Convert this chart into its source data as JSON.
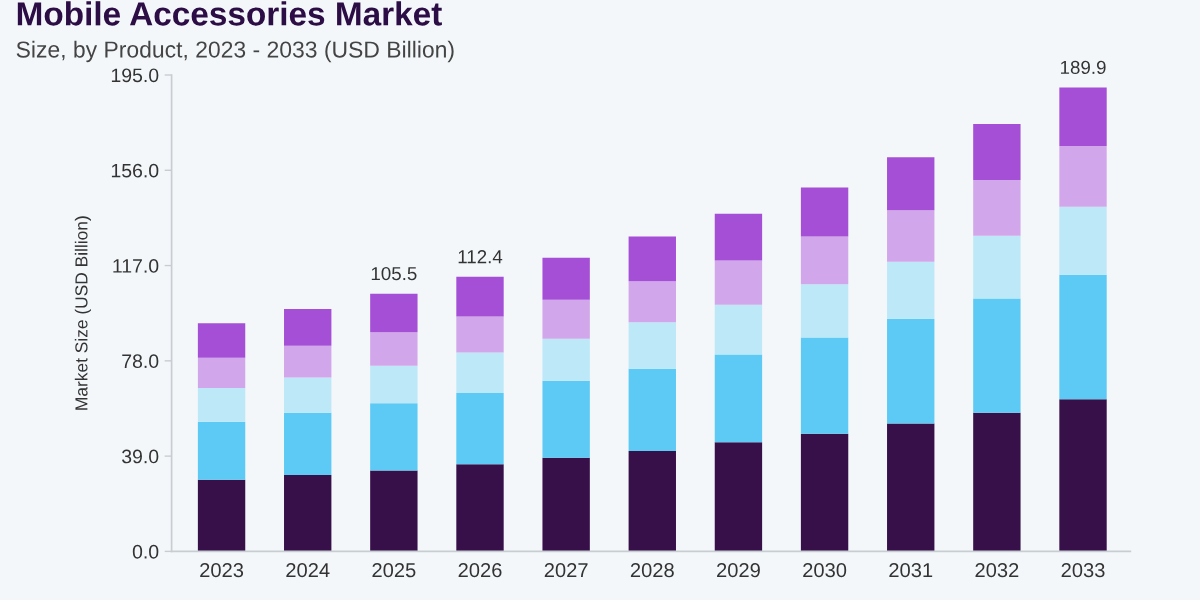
{
  "chart_data": {
    "type": "bar",
    "title": "Mobile Accessories Market",
    "subtitle": "Size, by Product, 2023 - 2033 (USD Billion)",
    "ylabel": "Market Size (USD Billion)",
    "categories": [
      "2023",
      "2024",
      "2025",
      "2026",
      "2027",
      "2028",
      "2029",
      "2030",
      "2031",
      "2032",
      "2033"
    ],
    "stacked": true,
    "series": [
      {
        "color": "#37104a",
        "values": [
          29.3,
          31.3,
          33.1,
          35.7,
          38.3,
          41.1,
          44.7,
          48.2,
          52.4,
          56.8,
          62.3
        ]
      },
      {
        "color": "#5ccaf5",
        "values": [
          23.8,
          25.5,
          27.5,
          29.1,
          31.6,
          33.7,
          35.9,
          39.4,
          42.8,
          46.7,
          50.9
        ]
      },
      {
        "color": "#bde8f8",
        "values": [
          13.8,
          14.4,
          15.4,
          16.6,
          17.1,
          19.0,
          20.4,
          21.7,
          23.4,
          25.7,
          27.9
        ]
      },
      {
        "color": "#d2a6ea",
        "values": [
          12.4,
          13.0,
          13.7,
          14.7,
          16.0,
          16.8,
          18.1,
          19.6,
          21.0,
          22.8,
          24.8
        ]
      },
      {
        "color": "#a44fd6",
        "values": [
          14.1,
          15.0,
          15.8,
          16.3,
          17.2,
          18.3,
          19.1,
          20.1,
          21.7,
          22.9,
          24.0
        ]
      }
    ],
    "totals": [
      null,
      null,
      "105.5",
      "112.4",
      null,
      null,
      null,
      null,
      null,
      null,
      "189.9"
    ],
    "ylim": [
      0,
      195
    ],
    "yticks": [
      {
        "value": 0,
        "label": "0.0"
      },
      {
        "value": 39,
        "label": "39.0"
      },
      {
        "value": 78,
        "label": "78.0"
      },
      {
        "value": 117,
        "label": "117.0"
      },
      {
        "value": 156,
        "label": "156.0"
      },
      {
        "value": 195,
        "label": "195.0"
      }
    ]
  }
}
